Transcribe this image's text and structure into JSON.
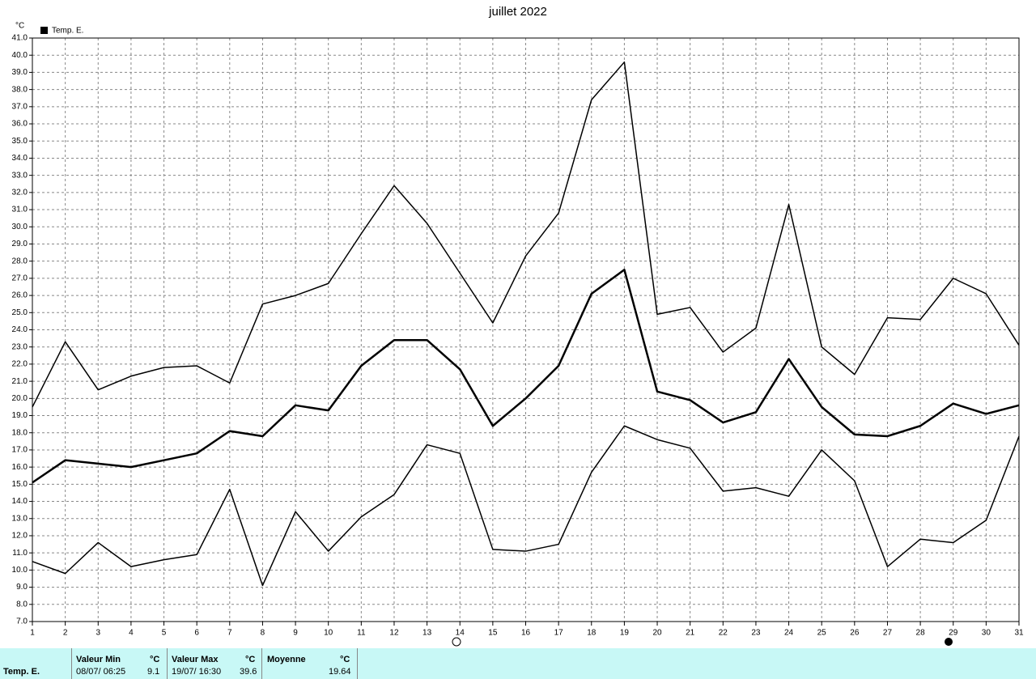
{
  "chart_data": {
    "type": "line",
    "title": "juillet 2022",
    "y_unit": "°C",
    "legend_label": "Temp. E.",
    "legend_color": "#000000",
    "x": [
      1,
      2,
      3,
      4,
      5,
      6,
      7,
      8,
      9,
      10,
      11,
      12,
      13,
      14,
      15,
      16,
      17,
      18,
      19,
      20,
      21,
      22,
      23,
      24,
      25,
      26,
      27,
      28,
      29,
      30,
      31
    ],
    "xlim": [
      1,
      31
    ],
    "xticks": [
      1,
      2,
      3,
      4,
      5,
      6,
      7,
      8,
      9,
      10,
      11,
      12,
      13,
      14,
      15,
      16,
      17,
      18,
      19,
      20,
      21,
      22,
      23,
      24,
      25,
      26,
      27,
      28,
      29,
      30,
      31
    ],
    "ylim": [
      7,
      41
    ],
    "yticks": [
      {
        "value": 7,
        "label": "7.0"
      },
      {
        "value": 8,
        "label": "8.0"
      },
      {
        "value": 9,
        "label": "9.0"
      },
      {
        "value": 10,
        "label": "10.0"
      },
      {
        "value": 11,
        "label": "11.0"
      },
      {
        "value": 12,
        "label": "12.0"
      },
      {
        "value": 13,
        "label": "13.0"
      },
      {
        "value": 14,
        "label": "14.0"
      },
      {
        "value": 15,
        "label": "15.0"
      },
      {
        "value": 16,
        "label": "16.0"
      },
      {
        "value": 17,
        "label": "17.0"
      },
      {
        "value": 18,
        "label": "18.0"
      },
      {
        "value": 19,
        "label": "19.0"
      },
      {
        "value": 20,
        "label": "20.0"
      },
      {
        "value": 21,
        "label": "21.0"
      },
      {
        "value": 22,
        "label": "22.0"
      },
      {
        "value": 23,
        "label": "23.0"
      },
      {
        "value": 24,
        "label": "24.0"
      },
      {
        "value": 25,
        "label": "25.0"
      },
      {
        "value": 26,
        "label": "26.0"
      },
      {
        "value": 27,
        "label": "27.0"
      },
      {
        "value": 28,
        "label": "28.0"
      },
      {
        "value": 29,
        "label": "29.0"
      },
      {
        "value": 30,
        "label": "30.0"
      },
      {
        "value": 31,
        "label": "31.0"
      },
      {
        "value": 32,
        "label": "32.0"
      },
      {
        "value": 33,
        "label": "33.0"
      },
      {
        "value": 34,
        "label": "34.0"
      },
      {
        "value": 35,
        "label": "35.0"
      },
      {
        "value": 36,
        "label": "36.0"
      },
      {
        "value": 37,
        "label": "37.0"
      },
      {
        "value": 38,
        "label": "38.0"
      },
      {
        "value": 39,
        "label": "39.0"
      },
      {
        "value": 40,
        "label": "40.0"
      },
      {
        "value": 41,
        "label": "41.0"
      }
    ],
    "grid": true,
    "series": [
      {
        "color": "#000000",
        "width": 1.5,
        "values": [
          19.5,
          23.3,
          20.5,
          21.3,
          21.8,
          21.9,
          20.9,
          25.5,
          26.0,
          26.7,
          29.6,
          32.4,
          30.2,
          27.3,
          24.4,
          28.3,
          30.8,
          37.4,
          39.6,
          24.9,
          25.3,
          22.7,
          24.1,
          31.3,
          23.0,
          21.4,
          24.7,
          24.6,
          27.0,
          26.1,
          23.1
        ]
      },
      {
        "color": "#000000",
        "width": 2.5,
        "values": [
          15.1,
          16.4,
          16.2,
          16.0,
          16.4,
          16.8,
          18.1,
          17.8,
          19.6,
          19.3,
          21.9,
          23.4,
          23.4,
          21.7,
          18.4,
          20.0,
          21.9,
          26.1,
          27.5,
          20.4,
          19.9,
          18.6,
          19.2,
          22.3,
          19.5,
          17.9,
          17.8,
          18.4,
          19.7,
          19.1,
          19.6
        ]
      },
      {
        "color": "#000000",
        "width": 1.5,
        "values": [
          10.5,
          9.8,
          11.6,
          10.2,
          10.6,
          10.9,
          14.7,
          9.1,
          13.4,
          11.1,
          13.1,
          14.4,
          17.3,
          16.8,
          11.2,
          11.1,
          11.5,
          15.7,
          18.4,
          17.6,
          17.1,
          14.6,
          14.8,
          14.3,
          17.0,
          15.2,
          10.2,
          11.8,
          11.6,
          12.9,
          17.8
        ]
      }
    ]
  },
  "summary": {
    "row_label": "Temp. E.",
    "columns": [
      {
        "header": "Valeur Min",
        "unit": "°C",
        "date": "08/07/ 06:25",
        "value": 9.1
      },
      {
        "header": "Valeur Max",
        "unit": "°C",
        "date": "19/07/ 16:30",
        "value": 39.6
      },
      {
        "header": "Moyenne",
        "unit": "°C",
        "value": 19.64
      }
    ]
  }
}
